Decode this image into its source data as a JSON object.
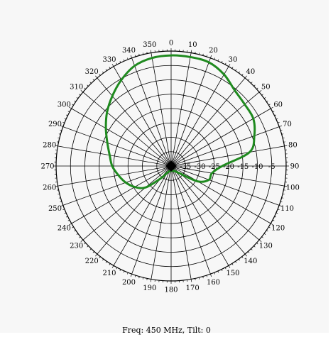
{
  "caption": "Freq: 450 MHz, Tilt: 0",
  "colors": {
    "background": "#f7f7f7",
    "grid": "#000000",
    "pattern": "#1f8a1f"
  },
  "chart_data": {
    "type": "polar",
    "title": "",
    "angle_ticks": [
      "0",
      "10",
      "20",
      "30",
      "40",
      "50",
      "60",
      "70",
      "80",
      "90",
      "100",
      "110",
      "120",
      "130",
      "140",
      "150",
      "160",
      "170",
      "180",
      "190",
      "200",
      "210",
      "220",
      "230",
      "240",
      "250",
      "260",
      "270",
      "280",
      "290",
      "300",
      "310",
      "320",
      "330",
      "340",
      "350"
    ],
    "radial_tick_labels": [
      "-35",
      "-30",
      "-25",
      "-20",
      "-15",
      "-10",
      "-5"
    ],
    "radial_range_db": [
      -40,
      0
    ],
    "grid": true,
    "series": [
      {
        "angles_deg": [
          0,
          10,
          20,
          30,
          40,
          50,
          60,
          70,
          80,
          90,
          100,
          110,
          120,
          130,
          140,
          150,
          160,
          170,
          180,
          190,
          200,
          210,
          220,
          230,
          240,
          250,
          260,
          270,
          280,
          290,
          300,
          310,
          320,
          330,
          340,
          350
        ],
        "gain_db": [
          -1.5,
          -1.5,
          -1.6,
          -3.2,
          -5.6,
          -6.6,
          -7.0,
          -9.2,
          -12.3,
          -22.2,
          -25.6,
          -26.0,
          -29.3,
          -35.9,
          -37.5,
          -38.0,
          -38.2,
          -38.3,
          -38.3,
          -38.2,
          -38.0,
          -37.3,
          -34.4,
          -28.4,
          -25.4,
          -23.2,
          -21.4,
          -19.5,
          -18.3,
          -16.4,
          -13.8,
          -10.9,
          -8.2,
          -5.4,
          -2.9,
          -1.8
        ]
      }
    ]
  }
}
